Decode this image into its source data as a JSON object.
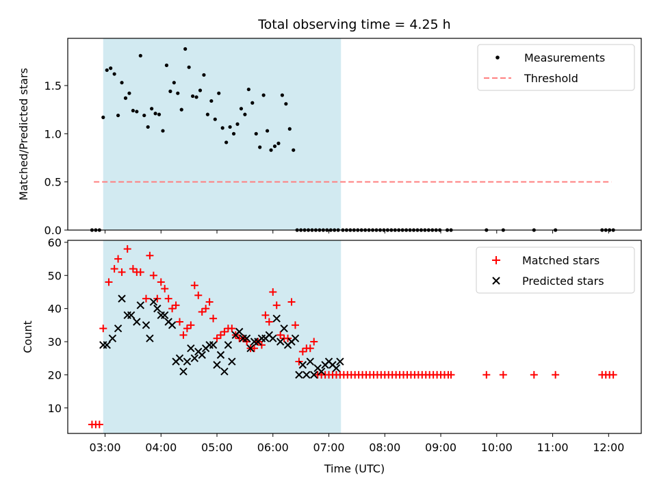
{
  "figure": {
    "title": "Total observing time = 4.25 h",
    "xlabel": "Time (UTC)"
  },
  "colors": {
    "measurement": "#000000",
    "threshold": "#ff7f7f",
    "matched": "#ff0000",
    "predicted": "#000000",
    "observing_span": "#add8e6"
  },
  "chart_data": [
    {
      "type": "scatter",
      "ylabel": "Matched/Predicted stars",
      "xlim": [
        "02:20",
        "12:35"
      ],
      "ylim": [
        0,
        1.99
      ],
      "yticks": [
        0.0,
        0.5,
        1.0,
        1.5
      ],
      "ytick_labels": [
        "0.0",
        "0.5",
        "1.0",
        "1.5"
      ],
      "xticks": [
        "03:00",
        "04:00",
        "05:00",
        "06:00",
        "07:00",
        "08:00",
        "09:00",
        "10:00",
        "11:00",
        "12:00"
      ],
      "show_xtick_labels": false,
      "observing_span": [
        "02:58",
        "07:13"
      ],
      "legend": {
        "position": "top-right",
        "entries": [
          "Measurements",
          "Threshold"
        ]
      },
      "threshold": {
        "name": "Threshold",
        "y": 0.5,
        "x": [
          "02:48",
          "12:03"
        ],
        "style": "dashed"
      },
      "series": [
        {
          "name": "Measurements",
          "marker": "dot",
          "x": [
            "02:46",
            "02:50",
            "02:54",
            "02:58",
            "03:02",
            "03:06",
            "03:10",
            "03:14",
            "03:18",
            "03:22",
            "03:26",
            "03:30",
            "03:34",
            "03:38",
            "03:42",
            "03:46",
            "03:50",
            "03:54",
            "03:58",
            "04:02",
            "04:06",
            "04:10",
            "04:14",
            "04:18",
            "04:22",
            "04:26",
            "04:30",
            "04:34",
            "04:38",
            "04:42",
            "04:46",
            "04:50",
            "04:54",
            "04:58",
            "05:02",
            "05:06",
            "05:10",
            "05:14",
            "05:18",
            "05:22",
            "05:26",
            "05:30",
            "05:34",
            "05:38",
            "05:42",
            "05:46",
            "05:50",
            "05:54",
            "05:58",
            "06:02",
            "06:06",
            "06:10",
            "06:14",
            "06:18",
            "06:22",
            "06:26",
            "06:30",
            "06:34",
            "06:38",
            "06:42",
            "06:46",
            "06:50",
            "06:54",
            "06:58",
            "07:02",
            "07:06",
            "07:10",
            "07:15",
            "07:19",
            "07:23",
            "07:27",
            "07:31",
            "07:35",
            "07:39",
            "07:43",
            "07:47",
            "07:51",
            "07:55",
            "07:59",
            "08:03",
            "08:07",
            "08:11",
            "08:15",
            "08:19",
            "08:23",
            "08:27",
            "08:31",
            "08:35",
            "08:39",
            "08:43",
            "08:47",
            "08:51",
            "08:55",
            "08:59",
            "09:07",
            "09:11",
            "09:49",
            "10:07",
            "10:40",
            "11:03",
            "11:53",
            "11:57",
            "12:01",
            "12:05"
          ],
          "y": [
            0,
            0,
            0,
            1.17,
            1.66,
            1.68,
            1.62,
            1.19,
            1.53,
            1.37,
            1.42,
            1.24,
            1.23,
            1.81,
            1.19,
            1.07,
            1.26,
            1.21,
            1.2,
            1.03,
            1.71,
            1.44,
            1.53,
            1.42,
            1.25,
            1.88,
            1.69,
            1.39,
            1.38,
            1.45,
            1.61,
            1.2,
            1.34,
            1.15,
            1.42,
            1.06,
            0.91,
            1.07,
            1.0,
            1.1,
            1.26,
            1.2,
            1.46,
            1.32,
            1.0,
            0.86,
            1.4,
            1.03,
            0.83,
            0.87,
            0.9,
            1.4,
            1.31,
            1.05,
            0.83,
            0,
            0,
            0,
            0,
            0,
            0,
            0,
            0,
            0,
            0,
            0,
            0,
            0,
            0,
            0,
            0,
            0,
            0,
            0,
            0,
            0,
            0,
            0,
            0,
            0,
            0,
            0,
            0,
            0,
            0,
            0,
            0,
            0,
            0,
            0,
            0,
            0,
            0,
            0,
            0,
            0,
            0,
            0,
            0,
            0,
            0,
            0,
            0,
            0
          ]
        }
      ]
    },
    {
      "type": "scatter",
      "ylabel": "Count",
      "xlim": [
        "02:20",
        "12:35"
      ],
      "ylim": [
        2.3,
        60.6
      ],
      "yticks": [
        10,
        20,
        30,
        40,
        50,
        60
      ],
      "ytick_labels": [
        "10",
        "20",
        "30",
        "40",
        "50",
        "60"
      ],
      "xticks": [
        "03:00",
        "04:00",
        "05:00",
        "06:00",
        "07:00",
        "08:00",
        "09:00",
        "10:00",
        "11:00",
        "12:00"
      ],
      "xtick_labels": [
        "03:00",
        "04:00",
        "05:00",
        "06:00",
        "07:00",
        "08:00",
        "09:00",
        "10:00",
        "11:00",
        "12:00"
      ],
      "observing_span": [
        "02:58",
        "07:13"
      ],
      "legend": {
        "position": "top-right",
        "entries": [
          "Matched stars",
          "Predicted stars"
        ]
      },
      "series": [
        {
          "name": "Matched stars",
          "marker": "plus",
          "x": [
            "02:46",
            "02:50",
            "02:54",
            "02:58",
            "03:04",
            "03:10",
            "03:14",
            "03:18",
            "03:24",
            "03:30",
            "03:34",
            "03:38",
            "03:44",
            "03:48",
            "03:52",
            "03:56",
            "04:00",
            "04:04",
            "04:08",
            "04:12",
            "04:16",
            "04:20",
            "04:24",
            "04:28",
            "04:32",
            "04:36",
            "04:40",
            "04:44",
            "04:48",
            "04:52",
            "04:56",
            "05:00",
            "05:04",
            "05:08",
            "05:12",
            "05:16",
            "05:20",
            "05:24",
            "05:28",
            "05:32",
            "05:36",
            "05:40",
            "05:44",
            "05:48",
            "05:52",
            "05:56",
            "06:00",
            "06:04",
            "06:08",
            "06:12",
            "06:16",
            "06:20",
            "06:24",
            "06:28",
            "06:32",
            "06:36",
            "06:40",
            "06:44",
            "06:48",
            "06:52",
            "06:56",
            "07:00",
            "07:04",
            "07:08",
            "07:12",
            "07:16",
            "07:20",
            "07:24",
            "07:28",
            "07:32",
            "07:36",
            "07:40",
            "07:44",
            "07:48",
            "07:52",
            "07:56",
            "08:00",
            "08:04",
            "08:08",
            "08:12",
            "08:16",
            "08:20",
            "08:24",
            "08:28",
            "08:32",
            "08:36",
            "08:40",
            "08:44",
            "08:48",
            "08:52",
            "08:56",
            "09:00",
            "09:04",
            "09:08",
            "09:11",
            "09:49",
            "10:07",
            "10:40",
            "11:03",
            "11:53",
            "11:57",
            "12:01",
            "12:05"
          ],
          "y": [
            5,
            5,
            5,
            34,
            48,
            52,
            55,
            51,
            58,
            52,
            51,
            51,
            43,
            56,
            50,
            43,
            48,
            46,
            43,
            40,
            41,
            36,
            32,
            34,
            35,
            47,
            44,
            39,
            40,
            42,
            37,
            31,
            32,
            33,
            34,
            34,
            32,
            31,
            31,
            30,
            28,
            28,
            30,
            29,
            38,
            36,
            45,
            41,
            32,
            31,
            31,
            42,
            35,
            24,
            27,
            28,
            28,
            30,
            20,
            20,
            20,
            20,
            20,
            20,
            20,
            20,
            20,
            20,
            20,
            20,
            20,
            20,
            20,
            20,
            20,
            20,
            20,
            20,
            20,
            20,
            20,
            20,
            20,
            20,
            20,
            20,
            20,
            20,
            20,
            20,
            20,
            20,
            20,
            20,
            20,
            20,
            20,
            20,
            20,
            20,
            20,
            20,
            20
          ]
        },
        {
          "name": "Predicted stars",
          "marker": "x",
          "x": [
            "02:58",
            "03:02",
            "03:08",
            "03:14",
            "03:18",
            "03:24",
            "03:28",
            "03:34",
            "03:38",
            "03:44",
            "03:48",
            "03:52",
            "03:56",
            "04:00",
            "04:04",
            "04:08",
            "04:12",
            "04:16",
            "04:20",
            "04:24",
            "04:28",
            "04:32",
            "04:36",
            "04:40",
            "04:44",
            "04:48",
            "04:52",
            "04:56",
            "05:00",
            "05:04",
            "05:08",
            "05:12",
            "05:16",
            "05:20",
            "05:24",
            "05:28",
            "05:32",
            "05:36",
            "05:40",
            "05:44",
            "05:48",
            "05:52",
            "05:56",
            "06:00",
            "06:04",
            "06:08",
            "06:12",
            "06:16",
            "06:20",
            "06:24",
            "06:28",
            "06:32",
            "06:36",
            "06:40",
            "06:44",
            "06:48",
            "06:52",
            "06:56",
            "07:00",
            "07:04",
            "07:08",
            "07:12"
          ],
          "y": [
            29,
            29,
            31,
            34,
            43,
            38,
            38,
            36,
            41,
            35,
            31,
            42,
            40,
            38,
            38,
            36,
            35,
            24,
            25,
            21,
            24,
            28,
            25,
            27,
            26,
            28,
            29,
            29,
            23,
            26,
            21,
            29,
            24,
            32,
            33,
            31,
            31,
            28,
            30,
            30,
            31,
            31,
            32,
            31,
            37,
            30,
            34,
            29,
            30,
            31,
            20,
            23,
            20,
            24,
            20,
            22,
            21,
            23,
            24,
            23,
            22,
            24
          ]
        }
      ]
    }
  ]
}
